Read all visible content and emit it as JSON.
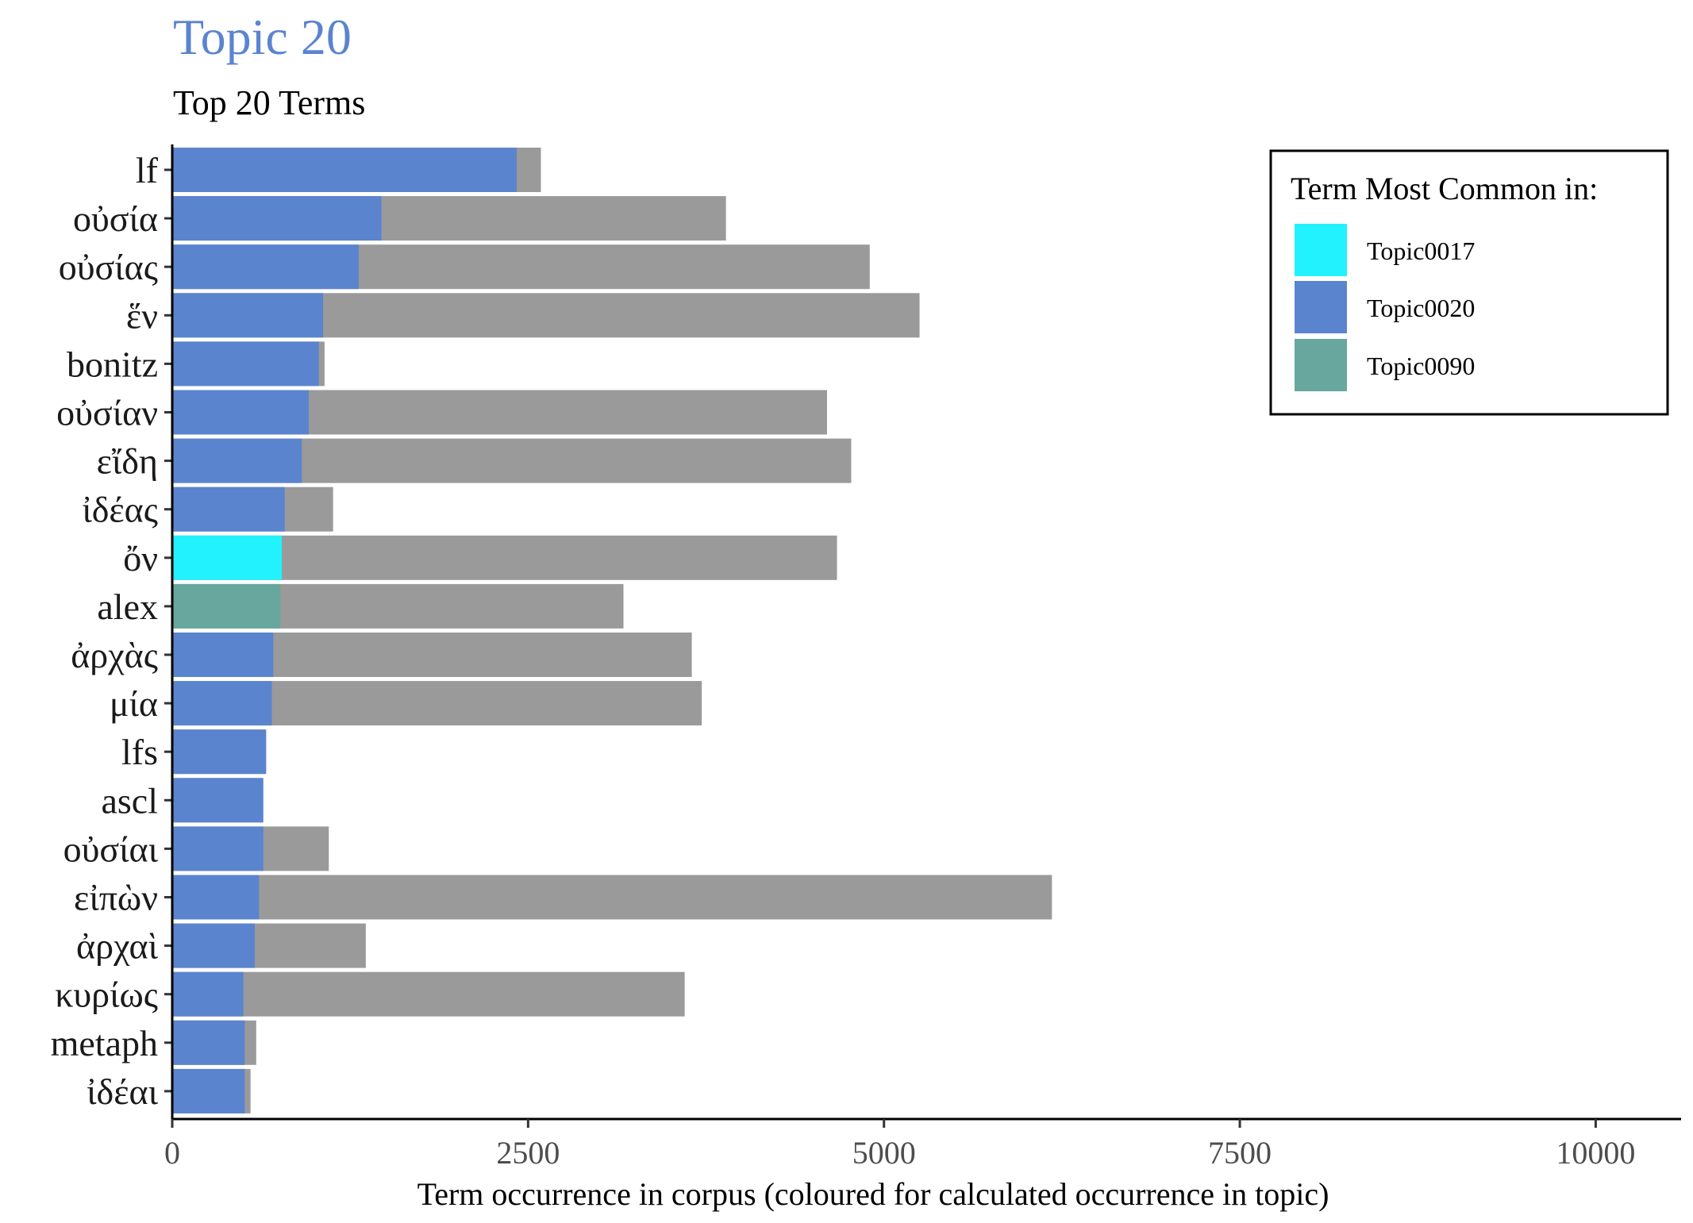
{
  "title": "Topic 20",
  "subtitle": "Top 20 Terms",
  "colors": {
    "title": "#5b84cf",
    "corpus_bar": "#9a9a9a",
    "Topic0017": "#22f2fd",
    "Topic0020": "#5b84cf",
    "Topic0090": "#67a79d"
  },
  "chart_data": {
    "type": "bar",
    "orientation": "horizontal",
    "xlabel": "Term occurrence in corpus (coloured for calculated occurrence in topic)",
    "ylabel": "",
    "xlim": [
      0,
      10600
    ],
    "xticks": [
      0,
      2500,
      5000,
      7500,
      10000
    ],
    "xtick_labels": [
      "0",
      "2500",
      "5000",
      "7500",
      "10000"
    ],
    "grid": false,
    "legend_position": "top-right",
    "legend_title": "Term Most Common in:",
    "legend_entries": [
      "Topic0017",
      "Topic0020",
      "Topic0090"
    ],
    "categories": [
      "lf",
      "οὐσία",
      "οὐσίας",
      "ἕν",
      "bonitz",
      "οὐσίαν",
      "εἴδη",
      "ἰδέας",
      "ὄν",
      "alex",
      "ἀρχὰς",
      "μία",
      "lfs",
      "ascl",
      "οὐσίαι",
      "εἰπὼν",
      "ἀρχαὶ",
      "κυρίως",
      "metaph",
      "ἰδέαι"
    ],
    "series": [
      {
        "name": "corpus",
        "values": [
          2590,
          3890,
          4900,
          5250,
          1070,
          4600,
          4770,
          1130,
          4670,
          3170,
          3650,
          3720,
          650,
          630,
          1100,
          6180,
          1360,
          3600,
          590,
          550
        ]
      },
      {
        "name": "topic",
        "values": [
          2420,
          1470,
          1310,
          1060,
          1030,
          960,
          910,
          790,
          770,
          760,
          710,
          700,
          660,
          640,
          640,
          610,
          580,
          500,
          510,
          510
        ]
      }
    ],
    "topic_of_term": [
      "Topic0020",
      "Topic0020",
      "Topic0020",
      "Topic0020",
      "Topic0020",
      "Topic0020",
      "Topic0020",
      "Topic0020",
      "Topic0017",
      "Topic0090",
      "Topic0020",
      "Topic0020",
      "Topic0020",
      "Topic0020",
      "Topic0020",
      "Topic0020",
      "Topic0020",
      "Topic0020",
      "Topic0020",
      "Topic0020"
    ]
  }
}
